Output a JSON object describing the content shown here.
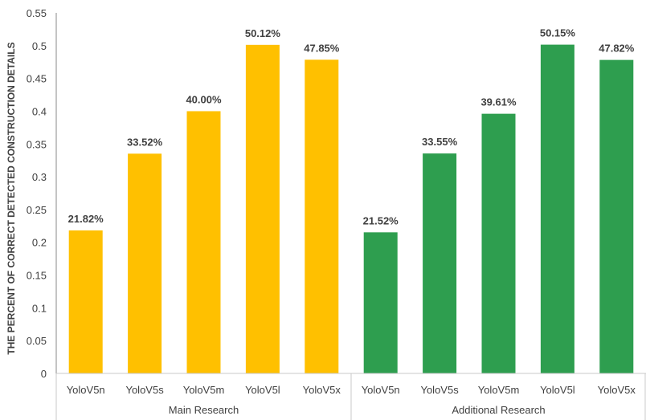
{
  "chart_data": {
    "type": "bar",
    "ylabel": "THE PERCENT OF CORRECT DETECTED CONSTRUCTION DETAILS",
    "ylim": [
      0,
      0.55
    ],
    "yticks": [
      "0",
      "0.05",
      "0.1",
      "0.15",
      "0.2",
      "0.25",
      "0.3",
      "0.35",
      "0.4",
      "0.45",
      "0.5",
      "0.55"
    ],
    "grid": false,
    "legend": "none",
    "groups": [
      {
        "name": "Main Research",
        "color": "#FFC000",
        "categories": [
          "YoloV5n",
          "YoloV5s",
          "YoloV5m",
          "YoloV5l",
          "YoloV5x"
        ],
        "values": [
          0.2182,
          0.3352,
          0.4,
          0.5012,
          0.4785
        ],
        "labels": [
          "21.82%",
          "33.52%",
          "40.00%",
          "50.12%",
          "47.85%"
        ]
      },
      {
        "name": "Additional Research",
        "color": "#2E9E4F",
        "categories": [
          "YoloV5n",
          "YoloV5s",
          "YoloV5m",
          "YoloV5l",
          "YoloV5x"
        ],
        "values": [
          0.2152,
          0.3355,
          0.3961,
          0.5015,
          0.4782
        ],
        "labels": [
          "21.52%",
          "33.55%",
          "39.61%",
          "50.15%",
          "47.82%"
        ]
      }
    ]
  }
}
